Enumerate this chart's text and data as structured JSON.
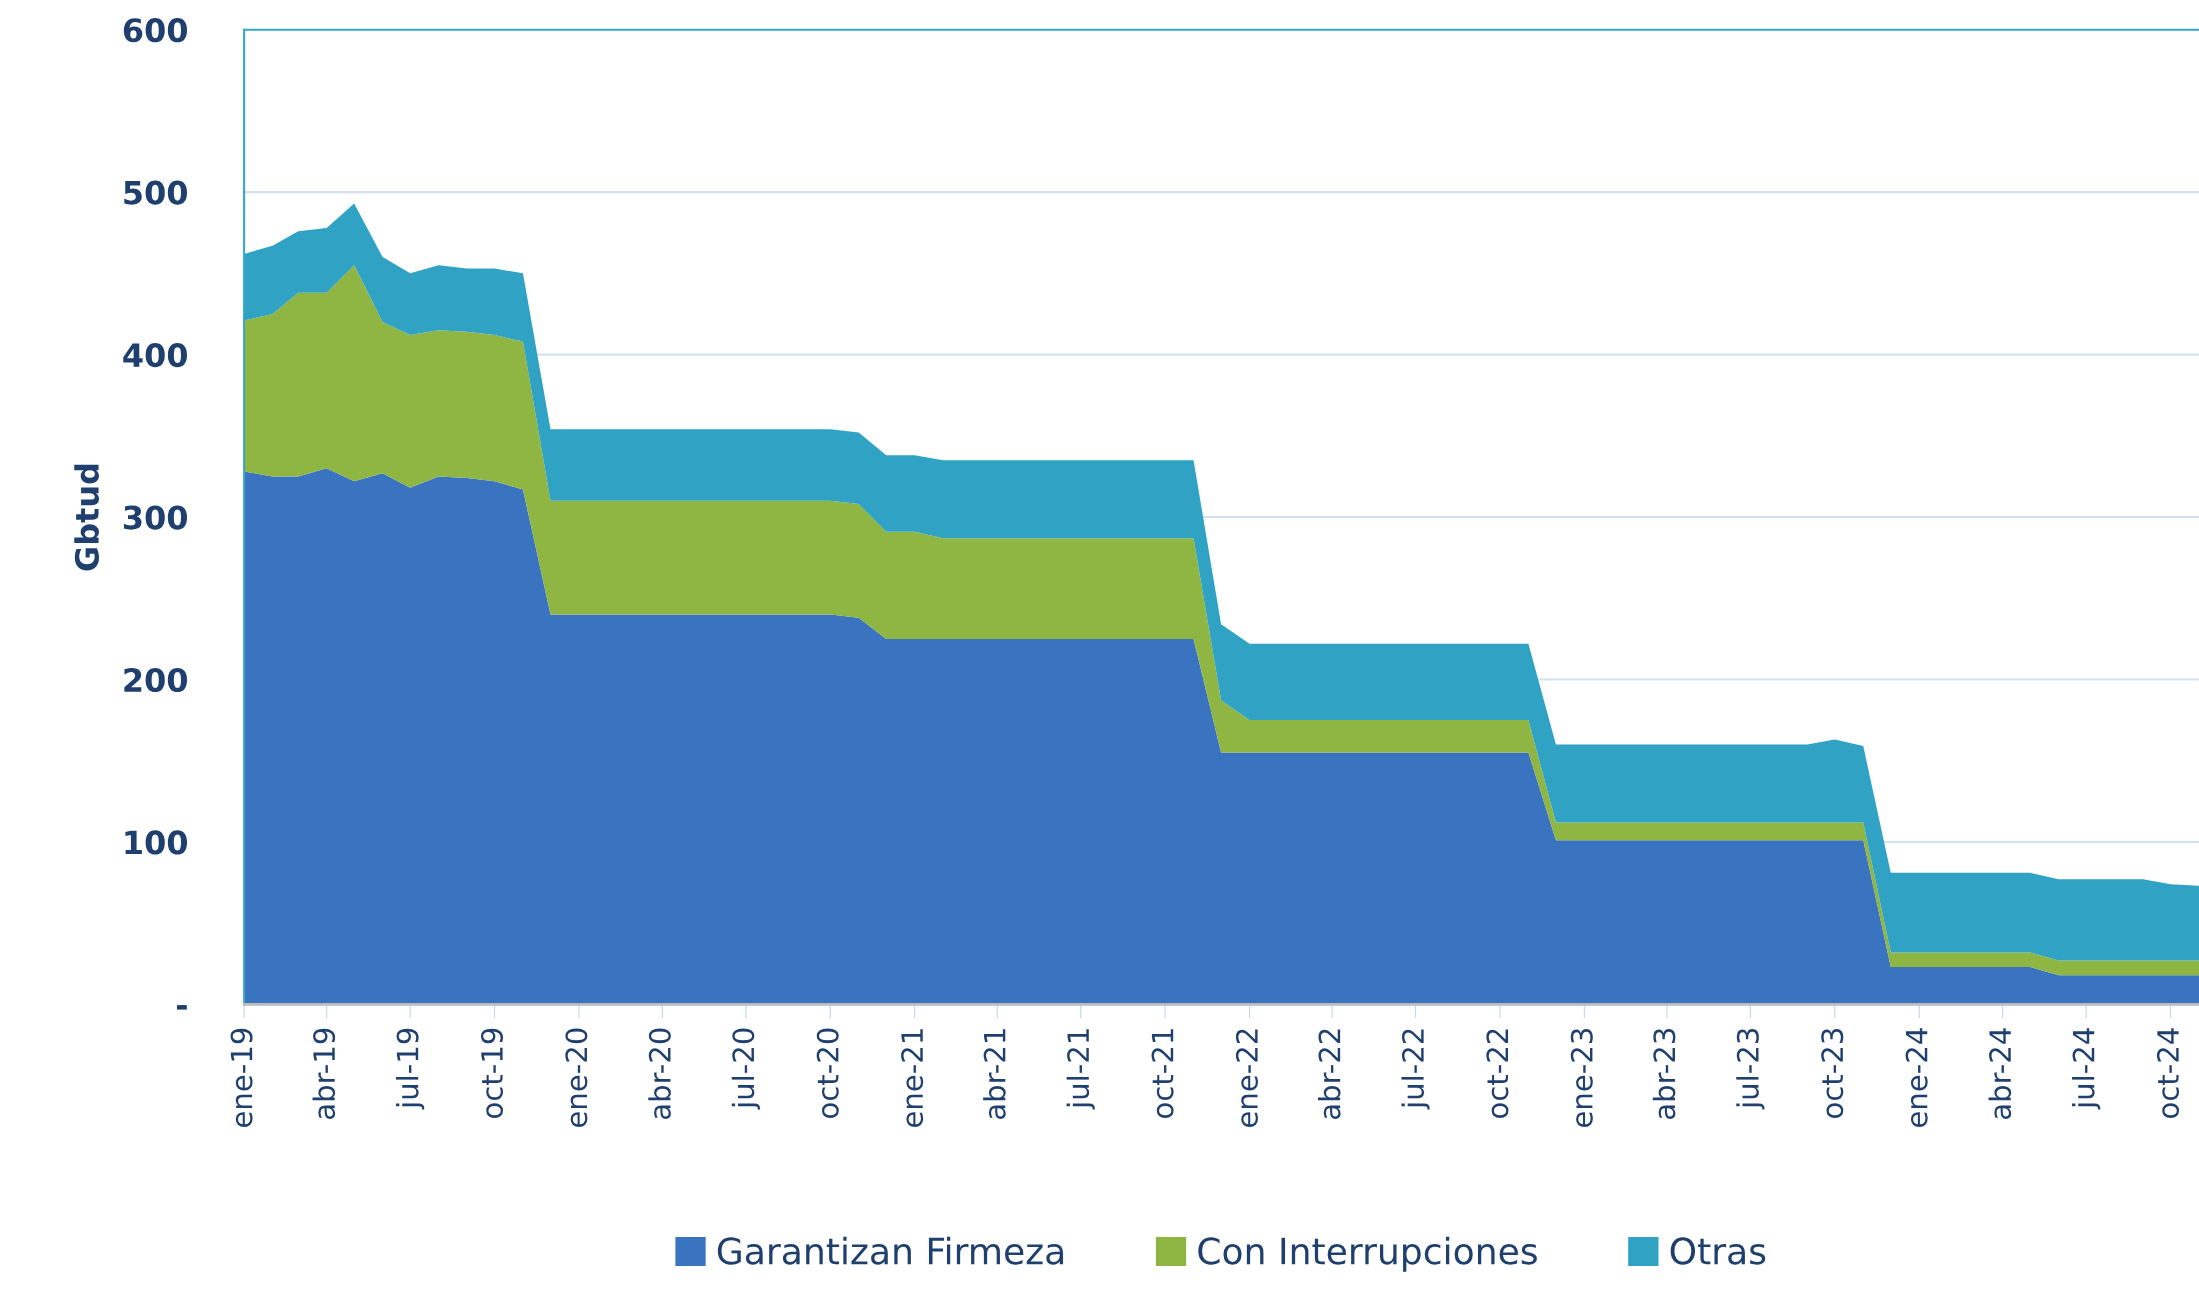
{
  "chart_data": {
    "type": "area",
    "stacked": true,
    "ylabel": "Gbtud",
    "x": [
      "2019-01",
      "2019-02",
      "2019-03",
      "2019-04",
      "2019-05",
      "2019-06",
      "2019-07",
      "2019-08",
      "2019-09",
      "2019-10",
      "2019-11",
      "2019-12",
      "2020-01",
      "2020-02",
      "2020-03",
      "2020-04",
      "2020-05",
      "2020-06",
      "2020-07",
      "2020-08",
      "2020-09",
      "2020-10",
      "2020-11",
      "2020-12",
      "2021-01",
      "2021-02",
      "2021-03",
      "2021-04",
      "2021-05",
      "2021-06",
      "2021-07",
      "2021-08",
      "2021-09",
      "2021-10",
      "2021-11",
      "2021-12",
      "2022-01",
      "2022-02",
      "2022-03",
      "2022-04",
      "2022-05",
      "2022-06",
      "2022-07",
      "2022-08",
      "2022-09",
      "2022-10",
      "2022-11",
      "2022-12",
      "2023-01",
      "2023-02",
      "2023-03",
      "2023-04",
      "2023-05",
      "2023-06",
      "2023-07",
      "2023-08",
      "2023-09",
      "2023-10",
      "2023-11",
      "2023-12",
      "2024-01",
      "2024-02",
      "2024-03",
      "2024-04",
      "2024-05",
      "2024-06",
      "2024-07",
      "2024-08",
      "2024-09",
      "2024-10",
      "2024-11"
    ],
    "series": [
      {
        "name": "Garantizan Firmeza",
        "color": "#3a74c0",
        "values": [
          328,
          325,
          325,
          330,
          322,
          327,
          318,
          325,
          324,
          322,
          317,
          240,
          240,
          240,
          240,
          240,
          240,
          240,
          240,
          240,
          240,
          240,
          238,
          225,
          225,
          225,
          225,
          225,
          225,
          225,
          225,
          225,
          225,
          225,
          225,
          155,
          155,
          155,
          155,
          155,
          155,
          155,
          155,
          155,
          155,
          155,
          155,
          101,
          101,
          101,
          101,
          101,
          101,
          101,
          101,
          101,
          101,
          101,
          101,
          23,
          23,
          23,
          23,
          23,
          23,
          18,
          18,
          18,
          18,
          18,
          18
        ]
      },
      {
        "name": "Con Interrupciones",
        "color": "#8fb543",
        "values": [
          93,
          100,
          113,
          108,
          133,
          93,
          94,
          90,
          90,
          90,
          91,
          70,
          70,
          70,
          70,
          70,
          70,
          70,
          70,
          70,
          70,
          70,
          70,
          66,
          66,
          62,
          62,
          62,
          62,
          62,
          62,
          62,
          62,
          62,
          62,
          32,
          20,
          20,
          20,
          20,
          20,
          20,
          20,
          20,
          20,
          20,
          20,
          11,
          11,
          11,
          11,
          11,
          11,
          11,
          11,
          11,
          11,
          11,
          11,
          9,
          9,
          9,
          9,
          9,
          9,
          9,
          9,
          9,
          9,
          9,
          9
        ]
      },
      {
        "name": "Otras",
        "color": "#30a2c4",
        "values": [
          41,
          42,
          38,
          40,
          38,
          40,
          38,
          40,
          39,
          41,
          42,
          44,
          44,
          44,
          44,
          44,
          44,
          44,
          44,
          44,
          44,
          44,
          44,
          47,
          47,
          48,
          48,
          48,
          48,
          48,
          48,
          48,
          48,
          48,
          48,
          47,
          47,
          47,
          47,
          47,
          47,
          47,
          47,
          47,
          47,
          47,
          47,
          48,
          48,
          48,
          48,
          48,
          48,
          48,
          48,
          48,
          48,
          51,
          47,
          49,
          49,
          49,
          49,
          49,
          49,
          50,
          50,
          50,
          50,
          47,
          46
        ]
      }
    ],
    "xlim": [
      "2019-01",
      "2024-11"
    ],
    "xticks": [
      {
        "value": "2019-01",
        "label": "ene-19"
      },
      {
        "value": "2019-04",
        "label": "abr-19"
      },
      {
        "value": "2019-07",
        "label": "jul-19"
      },
      {
        "value": "2019-10",
        "label": "oct-19"
      },
      {
        "value": "2020-01",
        "label": "ene-20"
      },
      {
        "value": "2020-04",
        "label": "abr-20"
      },
      {
        "value": "2020-07",
        "label": "jul-20"
      },
      {
        "value": "2020-10",
        "label": "oct-20"
      },
      {
        "value": "2021-01",
        "label": "ene-21"
      },
      {
        "value": "2021-04",
        "label": "abr-21"
      },
      {
        "value": "2021-07",
        "label": "jul-21"
      },
      {
        "value": "2021-10",
        "label": "oct-21"
      },
      {
        "value": "2022-01",
        "label": "ene-22"
      },
      {
        "value": "2022-04",
        "label": "abr-22"
      },
      {
        "value": "2022-07",
        "label": "jul-22"
      },
      {
        "value": "2022-10",
        "label": "oct-22"
      },
      {
        "value": "2023-01",
        "label": "ene-23"
      },
      {
        "value": "2023-04",
        "label": "abr-23"
      },
      {
        "value": "2023-07",
        "label": "jul-23"
      },
      {
        "value": "2023-10",
        "label": "oct-23"
      },
      {
        "value": "2024-01",
        "label": "ene-24"
      },
      {
        "value": "2024-04",
        "label": "abr-24"
      },
      {
        "value": "2024-07",
        "label": "jul-24"
      },
      {
        "value": "2024-10",
        "label": "oct-24"
      }
    ],
    "ylim": [
      0,
      600
    ],
    "yticks": [
      {
        "value": 0,
        "label": "-"
      },
      100,
      200,
      300,
      400,
      500,
      600
    ],
    "grid": "y",
    "legend": "bottom"
  }
}
